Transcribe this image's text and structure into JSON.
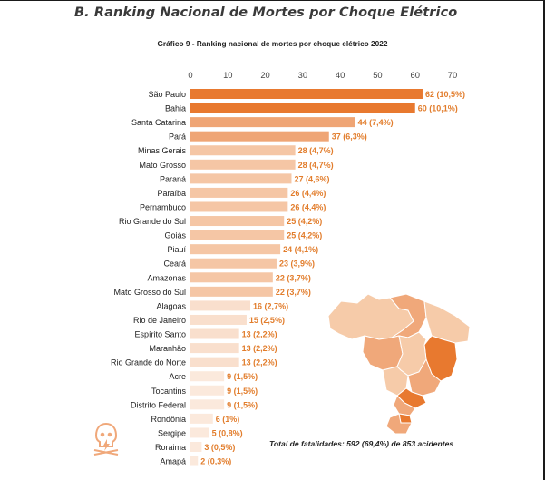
{
  "section_title": "B. Ranking Nacional de Mortes por Choque Elétrico",
  "footer_note": "Total  de fatalidades:  592 (69,4%) de 853 acidentes",
  "colors": {
    "bar_dark": "#e8792f",
    "bar_mid": "#efa575",
    "bar_light": "#f5c6a5",
    "bar_pale": "#f9dfcd",
    "bar_lightest": "#fbe9dc",
    "label": "#e27d2c",
    "map_dark": "#e8792f",
    "map_mid": "#f0a87a",
    "map_light": "#f6cba9",
    "map_border": "#ffffff"
  },
  "icons": {
    "logo": "skull-lightning-icon",
    "map": "brazil-map-icon"
  },
  "chart_data": {
    "type": "bar",
    "orientation": "horizontal",
    "title": "Gráfico 9 - Ranking nacional de mortes por choque elétrico 2022",
    "xlim": [
      0,
      70
    ],
    "xticks": [
      "0",
      "10",
      "20",
      "30",
      "40",
      "50",
      "60",
      "70"
    ],
    "xaxis_position": "top",
    "grid": false,
    "categories": [
      "São Paulo",
      "Bahia",
      "Santa Catarina",
      "Pará",
      "Minas Gerais",
      "Mato Grosso",
      "Paraná",
      "Paraíba",
      "Pernambuco",
      "Rio Grande do Sul",
      "Goiás",
      "Piauí",
      "Ceará",
      "Amazonas",
      "Mato Grosso do Sul",
      "Alagoas",
      "Rio de Janeiro",
      "Espírito Santo",
      "Maranhão",
      "Rio Grande do Norte",
      "Acre",
      "Tocantins",
      "Distrito Federal",
      "Rondônia",
      "Sergipe",
      "Roraima",
      "Amapá"
    ],
    "values": [
      62,
      60,
      44,
      37,
      28,
      28,
      27,
      26,
      26,
      25,
      25,
      24,
      23,
      22,
      22,
      16,
      15,
      13,
      13,
      13,
      9,
      9,
      9,
      6,
      5,
      3,
      2
    ],
    "data_labels": [
      "62 (10,5%)",
      "60 (10,1%)",
      "44 (7,4%)",
      "37 (6,3%)",
      "28 (4,7%)",
      "28 (4,7%)",
      "27 (4,6%)",
      "26 (4,4%)",
      "26 (4,4%)",
      "25 (4,2%)",
      "25 (4,2%)",
      "24 (4,1%)",
      "23 (3,9%)",
      "22 (3,7%)",
      "22 (3,7%)",
      "16 (2,7%)",
      "15 (2,5%)",
      "13 (2,2%)",
      "13 (2,2%)",
      "13 (2,2%)",
      "9 (1,5%)",
      "9 (1,5%)",
      "9 (1,5%)",
      "6 (1%)",
      "5 (0,8%)",
      "3 (0,5%)",
      "2 (0,3%)"
    ]
  }
}
